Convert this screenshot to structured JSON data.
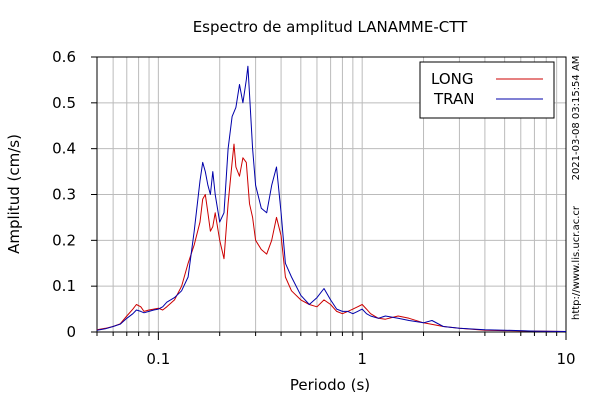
{
  "chart_data": {
    "type": "line",
    "title": "Espectro de amplitud LANAMME-CTT",
    "xlabel": "Periodo (s)",
    "ylabel": "Amplitud (cm/s)",
    "x_scale": "log",
    "xlim": [
      0.05,
      10
    ],
    "ylim": [
      0,
      0.6
    ],
    "grid": true,
    "legend_position": "top-right",
    "x_ticks": [
      {
        "value": 0.1,
        "label": "0.1"
      },
      {
        "value": 1,
        "label": "1"
      },
      {
        "value": 10,
        "label": "10"
      }
    ],
    "y_ticks": [
      {
        "value": 0,
        "label": "0"
      },
      {
        "value": 0.1,
        "label": "0.1"
      },
      {
        "value": 0.2,
        "label": "0.2"
      },
      {
        "value": 0.3,
        "label": "0.3"
      },
      {
        "value": 0.4,
        "label": "0.4"
      },
      {
        "value": 0.5,
        "label": "0.5"
      },
      {
        "value": 0.6,
        "label": "0.6"
      }
    ],
    "series": [
      {
        "name": "LONG",
        "color": "#cc0000",
        "points": [
          [
            0.05,
            0.005
          ],
          [
            0.055,
            0.008
          ],
          [
            0.06,
            0.012
          ],
          [
            0.065,
            0.018
          ],
          [
            0.07,
            0.035
          ],
          [
            0.075,
            0.05
          ],
          [
            0.078,
            0.06
          ],
          [
            0.082,
            0.055
          ],
          [
            0.085,
            0.045
          ],
          [
            0.09,
            0.048
          ],
          [
            0.095,
            0.05
          ],
          [
            0.1,
            0.052
          ],
          [
            0.105,
            0.048
          ],
          [
            0.11,
            0.055
          ],
          [
            0.12,
            0.07
          ],
          [
            0.13,
            0.1
          ],
          [
            0.14,
            0.15
          ],
          [
            0.15,
            0.19
          ],
          [
            0.16,
            0.24
          ],
          [
            0.165,
            0.29
          ],
          [
            0.17,
            0.3
          ],
          [
            0.175,
            0.26
          ],
          [
            0.18,
            0.22
          ],
          [
            0.185,
            0.23
          ],
          [
            0.19,
            0.26
          ],
          [
            0.2,
            0.2
          ],
          [
            0.21,
            0.16
          ],
          [
            0.22,
            0.28
          ],
          [
            0.23,
            0.37
          ],
          [
            0.235,
            0.41
          ],
          [
            0.24,
            0.36
          ],
          [
            0.25,
            0.34
          ],
          [
            0.26,
            0.38
          ],
          [
            0.27,
            0.37
          ],
          [
            0.28,
            0.28
          ],
          [
            0.29,
            0.25
          ],
          [
            0.3,
            0.2
          ],
          [
            0.32,
            0.18
          ],
          [
            0.34,
            0.17
          ],
          [
            0.36,
            0.2
          ],
          [
            0.38,
            0.25
          ],
          [
            0.4,
            0.21
          ],
          [
            0.42,
            0.12
          ],
          [
            0.45,
            0.09
          ],
          [
            0.5,
            0.07
          ],
          [
            0.55,
            0.06
          ],
          [
            0.6,
            0.055
          ],
          [
            0.65,
            0.07
          ],
          [
            0.7,
            0.06
          ],
          [
            0.75,
            0.045
          ],
          [
            0.8,
            0.04
          ],
          [
            0.85,
            0.045
          ],
          [
            0.9,
            0.05
          ],
          [
            0.95,
            0.055
          ],
          [
            1.0,
            0.06
          ],
          [
            1.05,
            0.05
          ],
          [
            1.1,
            0.04
          ],
          [
            1.2,
            0.03
          ],
          [
            1.3,
            0.028
          ],
          [
            1.5,
            0.035
          ],
          [
            1.7,
            0.03
          ],
          [
            2.0,
            0.02
          ],
          [
            2.5,
            0.012
          ],
          [
            3.0,
            0.008
          ],
          [
            4.0,
            0.004
          ],
          [
            5.0,
            0.003
          ],
          [
            7.0,
            0.002
          ],
          [
            10.0,
            0.001
          ]
        ]
      },
      {
        "name": "TRAN",
        "color": "#0000aa",
        "points": [
          [
            0.05,
            0.004
          ],
          [
            0.055,
            0.007
          ],
          [
            0.06,
            0.012
          ],
          [
            0.065,
            0.017
          ],
          [
            0.07,
            0.03
          ],
          [
            0.075,
            0.04
          ],
          [
            0.078,
            0.048
          ],
          [
            0.082,
            0.045
          ],
          [
            0.085,
            0.042
          ],
          [
            0.09,
            0.045
          ],
          [
            0.095,
            0.048
          ],
          [
            0.1,
            0.05
          ],
          [
            0.105,
            0.055
          ],
          [
            0.11,
            0.065
          ],
          [
            0.12,
            0.075
          ],
          [
            0.13,
            0.09
          ],
          [
            0.14,
            0.12
          ],
          [
            0.15,
            0.22
          ],
          [
            0.16,
            0.33
          ],
          [
            0.165,
            0.37
          ],
          [
            0.17,
            0.35
          ],
          [
            0.175,
            0.32
          ],
          [
            0.18,
            0.3
          ],
          [
            0.185,
            0.35
          ],
          [
            0.19,
            0.3
          ],
          [
            0.2,
            0.24
          ],
          [
            0.21,
            0.26
          ],
          [
            0.22,
            0.4
          ],
          [
            0.23,
            0.47
          ],
          [
            0.24,
            0.49
          ],
          [
            0.25,
            0.54
          ],
          [
            0.26,
            0.5
          ],
          [
            0.27,
            0.55
          ],
          [
            0.275,
            0.58
          ],
          [
            0.28,
            0.52
          ],
          [
            0.29,
            0.4
          ],
          [
            0.3,
            0.32
          ],
          [
            0.32,
            0.27
          ],
          [
            0.34,
            0.26
          ],
          [
            0.36,
            0.32
          ],
          [
            0.38,
            0.36
          ],
          [
            0.4,
            0.26
          ],
          [
            0.42,
            0.15
          ],
          [
            0.45,
            0.12
          ],
          [
            0.5,
            0.08
          ],
          [
            0.55,
            0.06
          ],
          [
            0.6,
            0.075
          ],
          [
            0.65,
            0.095
          ],
          [
            0.7,
            0.07
          ],
          [
            0.75,
            0.05
          ],
          [
            0.8,
            0.045
          ],
          [
            0.85,
            0.045
          ],
          [
            0.9,
            0.04
          ],
          [
            0.95,
            0.045
          ],
          [
            1.0,
            0.05
          ],
          [
            1.05,
            0.04
          ],
          [
            1.1,
            0.035
          ],
          [
            1.2,
            0.03
          ],
          [
            1.3,
            0.035
          ],
          [
            1.5,
            0.03
          ],
          [
            1.7,
            0.025
          ],
          [
            2.0,
            0.02
          ],
          [
            2.2,
            0.025
          ],
          [
            2.5,
            0.012
          ],
          [
            3.0,
            0.008
          ],
          [
            4.0,
            0.005
          ],
          [
            5.0,
            0.004
          ],
          [
            7.0,
            0.002
          ],
          [
            10.0,
            0.001
          ]
        ]
      }
    ]
  },
  "side_labels": {
    "timestamp": "2021-03-08 03:15:54 AM",
    "url": "http://www.lis.ucr.ac.cr"
  }
}
